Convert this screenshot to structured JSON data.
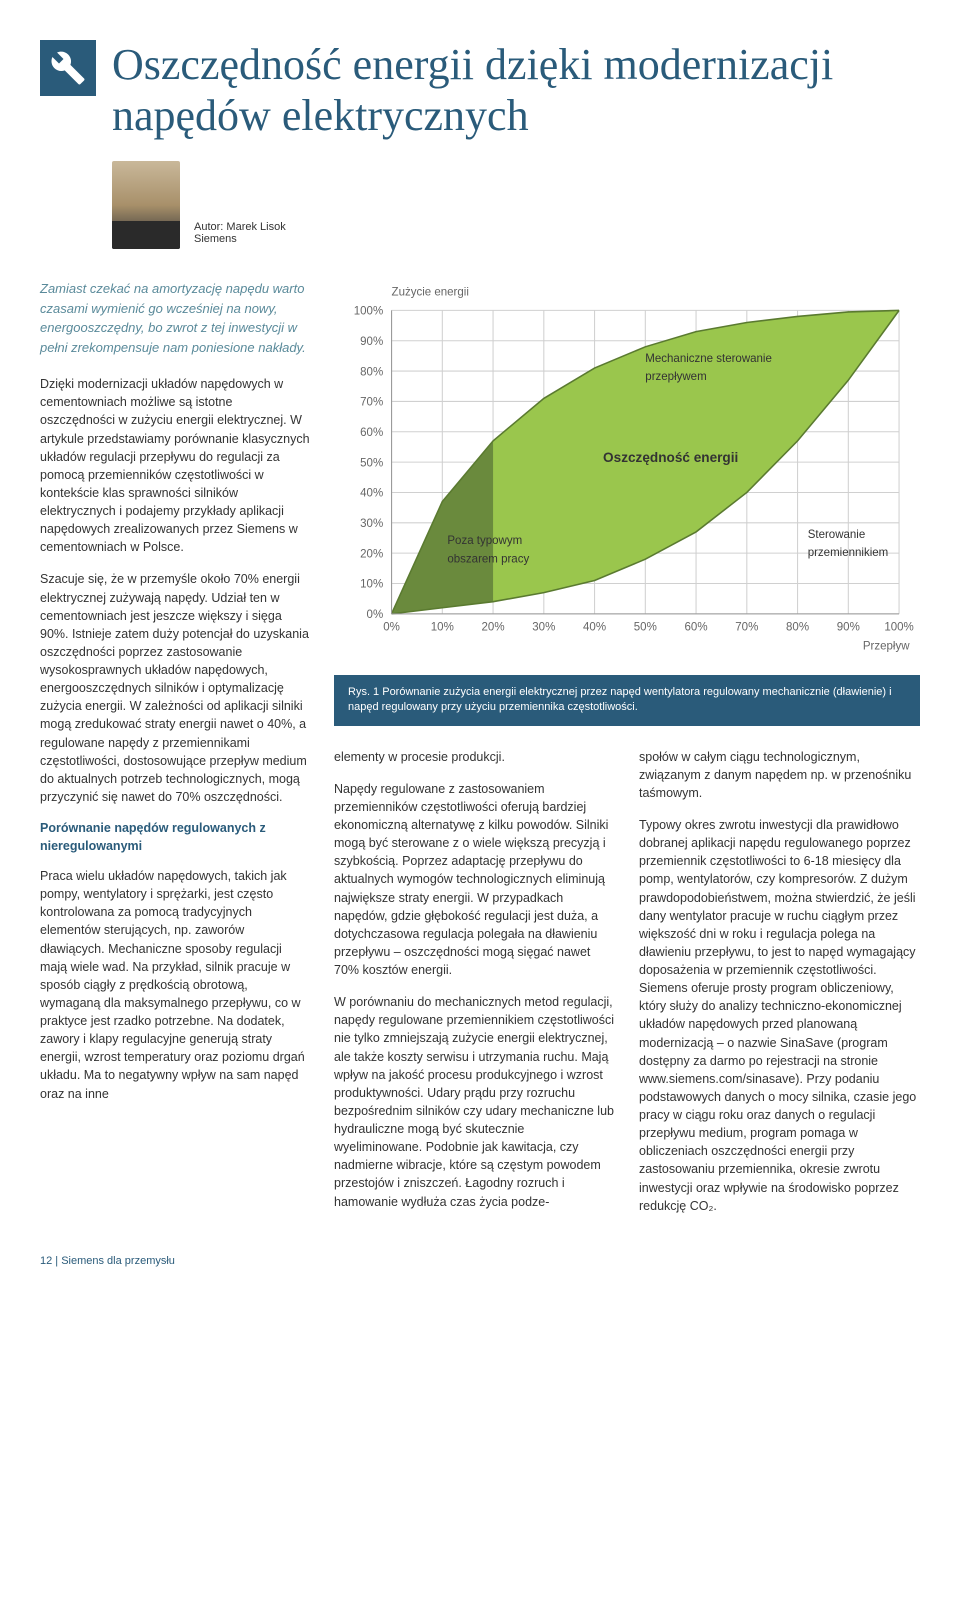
{
  "title": "Oszczędność energii dzięki modernizacji napędów elektrycznych",
  "author_label": "Autor:",
  "author_name": "Marek Lisok",
  "author_company": "Siemens",
  "lede": "Zamiast czekać na amortyzację napędu warto czasami wymienić go wcześniej na nowy, energooszczędny, bo zwrot z tej inwestycji w pełni zrekompensuje nam poniesione nakłady.",
  "left_col": {
    "p1": "Dzięki modernizacji układów napędowych w cementowniach możliwe są istotne oszczędności w zużyciu energii elektrycznej. W artykule przedstawiamy porównanie klasycznych układów regulacji przepływu do regulacji za pomocą przemienników częstotliwości w kontekście klas sprawności silników elektrycznych i podajemy przykłady aplikacji napędowych zrealizowanych przez Siemens w cementowniach w Polsce.",
    "p2": "Szacuje się, że w przemyśle około 70% energii elektrycznej zużywają napędy. Udział ten w cementowniach jest jeszcze większy i sięga 90%. Istnieje zatem duży potencjał do uzyskania oszczędności poprzez zastosowanie wysokosprawnych układów napędowych, energooszczędnych silników i optymalizację zużycia energii. W zależności od aplikacji silniki mogą zredukować straty energii nawet o 40%, a regulowane napędy z przemiennikami częstotliwości, dostosowujące przepływ medium do aktualnych potrzeb technologicznych, mogą przyczynić się nawet do 70% oszczędności.",
    "subhead1": "Porównanie napędów regulowanych z nieregulowanymi",
    "p3": "Praca wielu układów napędowych, takich jak pompy, wentylatory i sprężarki, jest często kontrolowana za pomocą tradycyjnych elementów sterujących, np. zaworów dławiących. Mechaniczne sposoby regulacji mają wiele wad. Na przykład, silnik pracuje w sposób ciągły z prędkością obrotową, wymaganą dla maksymalnego przepływu, co w praktyce jest rzadko potrzebne. Na dodatek, zawory i klapy regulacyjne generują straty energii, wzrost temperatury oraz poziomu drgań układu. Ma to negatywny wpływ na sam napęd oraz na inne"
  },
  "mid_col": {
    "p1": "elementy w procesie produkcji.",
    "p2": "Napędy regulowane z zastosowaniem przemienników częstotliwości oferują bardziej ekonomiczną alternatywę z kilku powodów. Silniki mogą być sterowane z o wiele większą precyzją i szybkością. Poprzez adaptację przepływu do aktualnych wymogów technologicznych eliminują największe straty energii. W przypadkach napędów, gdzie głębokość regulacji jest duża, a dotychczasowa regulacja polegała na dławieniu przepływu – oszczędności mogą sięgać nawet 70% kosztów energii.",
    "p3": "W porównaniu do mechanicznych metod regulacji, napędy regulowane przemiennikiem częstotliwości nie tylko zmniejszają zużycie energii elektrycznej, ale także koszty serwisu i utrzymania ruchu. Mają wpływ na jakość procesu produkcyjnego i wzrost produktywności. Udary prądu przy rozruchu bezpośrednim silników czy udary mechaniczne lub hydrauliczne mogą być skutecznie wyeliminowane. Podobnie jak kawitacja, czy nadmierne wibracje, które są częstym powodem przestojów i zniszczeń. Łagodny rozruch i hamowanie wydłuża czas życia podze-"
  },
  "right_col": {
    "p1": "społów w całym ciągu technologicznym, związanym z danym napędem np. w przenośniku taśmowym.",
    "p2": "Typowy okres zwrotu inwestycji dla prawidłowo dobranej aplikacji napędu regulowanego poprzez przemiennik częstotliwości to 6-18 miesięcy dla pomp, wentylatorów, czy kompresorów. Z dużym prawdopodobieństwem, można stwierdzić, że jeśli dany wentylator pracuje w ruchu ciągłym przez większość dni w roku i regulacja polega na dławieniu przepływu, to jest to napęd wymagający doposażenia w przemiennik częstotliwości. Siemens oferuje prosty program obliczeniowy, który służy do analizy techniczno-ekonomicznej układów napędowych przed planowaną modernizacją – o nazwie SinaSave (program dostępny za darmo po rejestracji na stronie www.siemens.com/sinasave). Przy podaniu podstawowych danych o mocy silnika, czasie jego pracy w ciągu roku oraz danych o regulacji przepływu medium, program pomaga w obliczeniach oszczędności energii przy zastosowaniu przemiennika, okresie zwrotu inwestycji oraz wpływie na środowisko poprzez redukcję CO₂."
  },
  "chart": {
    "ylabel": "Zużycie energii",
    "xlabel": "Przepływ",
    "y_ticks": [
      "0%",
      "10%",
      "20%",
      "30%",
      "40%",
      "50%",
      "60%",
      "70%",
      "80%",
      "90%",
      "100%"
    ],
    "x_ticks": [
      "0%",
      "10%",
      "20%",
      "30%",
      "40%",
      "50%",
      "60%",
      "70%",
      "80%",
      "90%",
      "100%"
    ],
    "annotations": {
      "mech": "Mechaniczne sterowanie przepływem",
      "savings": "Oszczędność energii",
      "outside": "Poza typowym obszarem pracy",
      "vfd": "Sterowanie przemiennikiem"
    },
    "colors": {
      "savings_fill": "#9ac64d",
      "outside_fill": "#6a8a3d",
      "grid": "#d0d0d0",
      "axis": "#999999",
      "bg": "#ffffff"
    },
    "xlim": [
      0,
      100
    ],
    "ylim": [
      0,
      100
    ],
    "top_curve": {
      "type": "concave-arc",
      "desc": "upper boundary – mechanical throttling",
      "points": [
        [
          0,
          0
        ],
        [
          10,
          37
        ],
        [
          20,
          57
        ],
        [
          30,
          71
        ],
        [
          40,
          81
        ],
        [
          50,
          88
        ],
        [
          60,
          93
        ],
        [
          70,
          96
        ],
        [
          80,
          98
        ],
        [
          90,
          99.5
        ],
        [
          100,
          100
        ]
      ]
    },
    "bottom_curve": {
      "type": "convex-arc",
      "desc": "lower boundary – VFD cube law",
      "points": [
        [
          0,
          0
        ],
        [
          10,
          2
        ],
        [
          20,
          4
        ],
        [
          30,
          7
        ],
        [
          40,
          11
        ],
        [
          50,
          18
        ],
        [
          60,
          27
        ],
        [
          70,
          40
        ],
        [
          80,
          57
        ],
        [
          90,
          77
        ],
        [
          100,
          100
        ]
      ]
    },
    "outside_region_xmax": 20
  },
  "caption": "Rys. 1 Porównanie zużycia energii elektrycznej przez napęd wentylatora regulowany mechanicznie (dławienie) i napęd regulowany przy użyciu przemiennika częstotliwości.",
  "footer": "12 | Siemens dla przemysłu"
}
